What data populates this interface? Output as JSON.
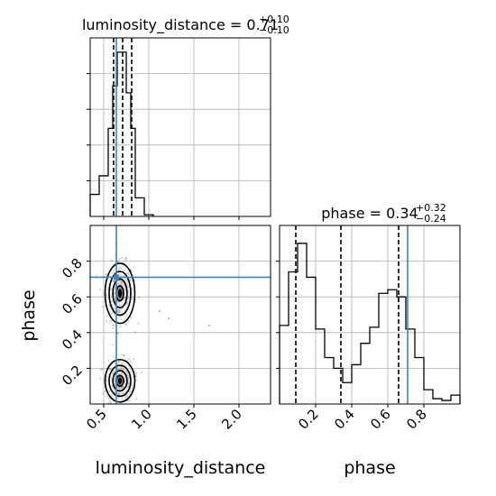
{
  "chart_data": [
    {
      "type": "histogram",
      "panel": "top-left",
      "title_main": "luminosity_distance = 0.71",
      "title_sup": "+0.10",
      "title_sub": "−0.10",
      "x_range": [
        0.35,
        2.35
      ],
      "x_ticks": [
        0.5,
        1.0,
        1.5,
        2.0
      ],
      "grid": true,
      "bin_edges": [
        0.35,
        0.45,
        0.55,
        0.6,
        0.65,
        0.7,
        0.75,
        0.8,
        0.85,
        0.95,
        1.05
      ],
      "counts": [
        0.13,
        0.24,
        0.52,
        0.77,
        0.97,
        0.97,
        0.73,
        0.52,
        0.11,
        0.01
      ],
      "quantile_lines": [
        0.61,
        0.71,
        0.81
      ],
      "truth": 0.64
    },
    {
      "type": "histogram",
      "panel": "bottom-right",
      "title_main": "phase = 0.34",
      "title_sup": "+0.32",
      "title_sub": "−0.24",
      "x_range": [
        0.0,
        1.0
      ],
      "x_ticks": [
        0.2,
        0.4,
        0.6,
        0.8
      ],
      "x_tick_labels": [
        "0.2",
        "0.4",
        "0.6",
        "0.8"
      ],
      "xlabel": "phase",
      "grid": true,
      "bin_edges": [
        0,
        0.05,
        0.1,
        0.15,
        0.2,
        0.25,
        0.3,
        0.35,
        0.4,
        0.45,
        0.5,
        0.55,
        0.6,
        0.65,
        0.7,
        0.75,
        0.8,
        0.85,
        0.9,
        0.95,
        1.0
      ],
      "counts": [
        0.44,
        0.74,
        0.9,
        0.71,
        0.42,
        0.26,
        0.2,
        0.12,
        0.22,
        0.34,
        0.43,
        0.62,
        0.64,
        0.6,
        0.42,
        0.26,
        0.08,
        0.03,
        0.02,
        0.05
      ],
      "quantile_lines": [
        0.09,
        0.34,
        0.66
      ],
      "truth": 0.71
    },
    {
      "type": "scatter",
      "panel": "bottom-left",
      "x_range": [
        0.35,
        2.35
      ],
      "y_range": [
        0.0,
        1.0
      ],
      "x_ticks": [
        0.5,
        1.0,
        1.5,
        2.0
      ],
      "x_tick_labels": [
        "0.5",
        "1.0",
        "1.5",
        "2.0"
      ],
      "y_ticks": [
        0.2,
        0.4,
        0.6,
        0.8
      ],
      "y_tick_labels": [
        "0.2",
        "0.4",
        "0.6",
        "0.8"
      ],
      "xlabel": "luminosity_distance",
      "ylabel": "phase",
      "grid": true,
      "truth": [
        0.64,
        0.71
      ],
      "clusters": [
        {
          "center": [
            0.68,
            0.62
          ],
          "spread": [
            0.075,
            0.085
          ]
        },
        {
          "center": [
            0.68,
            0.13
          ],
          "spread": [
            0.075,
            0.06
          ]
        }
      ],
      "outliers": [
        [
          1.12,
          0.52
        ],
        [
          1.22,
          0.48
        ],
        [
          1.67,
          0.44
        ]
      ]
    }
  ],
  "colors": {
    "truth": "#4682b4",
    "line": "#000000",
    "grid": "#b0b0b0"
  }
}
